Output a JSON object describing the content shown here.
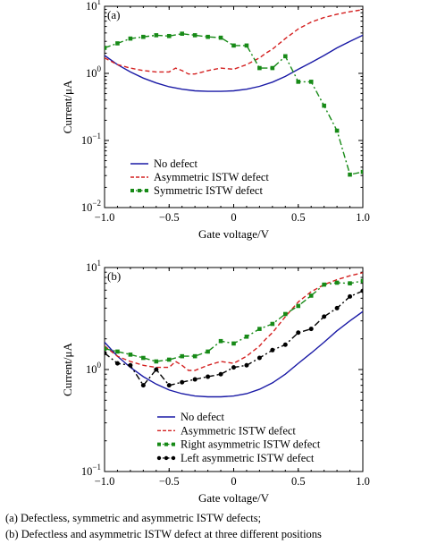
{
  "chart_data": [
    {
      "type": "line",
      "panel_label": "(a)",
      "xlabel": "Gate voltage/V",
      "ylabel": "Current/μA",
      "xlim": [
        -1.0,
        1.0
      ],
      "ylim": [
        0.01,
        10
      ],
      "y_scale": "log",
      "x_ticks": [
        "−1.0",
        "−0.5",
        "0",
        "0.5",
        "1.0"
      ],
      "x_tick_values": [
        -1.0,
        -0.5,
        0,
        0.5,
        1.0
      ],
      "y_ticks": [
        {
          "base": "10",
          "exp": "1"
        },
        {
          "base": "10",
          "exp": "0"
        },
        {
          "base": "10",
          "exp": "−1"
        },
        {
          "base": "10",
          "exp": "−2"
        }
      ],
      "y_tick_values": [
        10,
        1,
        0.1,
        0.01
      ],
      "grid": false,
      "legend_position": "bottom-left",
      "series": [
        {
          "name": "No defect",
          "color": "#1a1aa6",
          "style": "solid",
          "marker": "none",
          "x": [
            -1.0,
            -0.9,
            -0.8,
            -0.7,
            -0.6,
            -0.5,
            -0.4,
            -0.3,
            -0.2,
            -0.1,
            0.0,
            0.1,
            0.2,
            0.3,
            0.4,
            0.5,
            0.6,
            0.7,
            0.8,
            0.9,
            1.0
          ],
          "y": [
            1.85,
            1.35,
            1.05,
            0.85,
            0.72,
            0.63,
            0.58,
            0.55,
            0.54,
            0.54,
            0.55,
            0.58,
            0.64,
            0.74,
            0.9,
            1.15,
            1.45,
            1.85,
            2.4,
            3.0,
            3.7
          ]
        },
        {
          "name": "Asymmetric ISTW defect",
          "color": "#d42020",
          "style": "dashed",
          "marker": "none",
          "x": [
            -1.0,
            -0.9,
            -0.8,
            -0.7,
            -0.6,
            -0.5,
            -0.45,
            -0.4,
            -0.35,
            -0.3,
            -0.2,
            -0.1,
            0.0,
            0.1,
            0.2,
            0.25,
            0.3,
            0.4,
            0.5,
            0.6,
            0.7,
            0.8,
            0.9,
            1.0
          ],
          "y": [
            1.7,
            1.35,
            1.2,
            1.1,
            1.05,
            1.05,
            1.2,
            1.1,
            0.98,
            0.98,
            1.1,
            1.2,
            1.15,
            1.35,
            1.7,
            2.0,
            2.3,
            3.3,
            4.6,
            5.8,
            6.8,
            7.6,
            8.3,
            8.9
          ]
        },
        {
          "name": "Symmetric ISTW defect",
          "color": "#178a17",
          "style": "dashdot",
          "marker": "square",
          "x": [
            -1.0,
            -0.9,
            -0.8,
            -0.7,
            -0.6,
            -0.5,
            -0.4,
            -0.3,
            -0.2,
            -0.1,
            0.0,
            0.1,
            0.2,
            0.3,
            0.4,
            0.5,
            0.6,
            0.7,
            0.8,
            0.9,
            1.0
          ],
          "y": [
            2.4,
            2.8,
            3.3,
            3.5,
            3.7,
            3.6,
            3.9,
            3.7,
            3.5,
            3.4,
            2.6,
            2.6,
            1.2,
            1.2,
            1.8,
            0.75,
            0.75,
            0.33,
            0.14,
            0.031,
            0.034
          ]
        }
      ]
    },
    {
      "type": "line",
      "panel_label": "(b)",
      "xlabel": "Gate voltage/V",
      "ylabel": "Current/μA",
      "xlim": [
        -1.0,
        1.0
      ],
      "ylim": [
        0.1,
        10
      ],
      "y_scale": "log",
      "x_ticks": [
        "−1.0",
        "−0.5",
        "0",
        "0.5",
        "1.0"
      ],
      "x_tick_values": [
        -1.0,
        -0.5,
        0,
        0.5,
        1.0
      ],
      "y_ticks": [
        {
          "base": "10",
          "exp": "1"
        },
        {
          "base": "10",
          "exp": "0"
        },
        {
          "base": "10",
          "exp": "−1"
        }
      ],
      "y_tick_values": [
        10,
        1,
        0.1
      ],
      "grid": false,
      "legend_position": "bottom-left",
      "series": [
        {
          "name": "No defect",
          "color": "#1a1aa6",
          "style": "solid",
          "marker": "none",
          "x": [
            -1.0,
            -0.9,
            -0.8,
            -0.7,
            -0.6,
            -0.5,
            -0.4,
            -0.3,
            -0.2,
            -0.1,
            0.0,
            0.1,
            0.2,
            0.3,
            0.4,
            0.5,
            0.6,
            0.7,
            0.8,
            0.9,
            1.0
          ],
          "y": [
            1.85,
            1.35,
            1.05,
            0.85,
            0.72,
            0.63,
            0.58,
            0.55,
            0.54,
            0.54,
            0.55,
            0.58,
            0.64,
            0.74,
            0.9,
            1.15,
            1.45,
            1.85,
            2.4,
            3.0,
            3.7
          ]
        },
        {
          "name": "Asymmetric ISTW defect",
          "color": "#d42020",
          "style": "dashed",
          "marker": "none",
          "x": [
            -1.0,
            -0.9,
            -0.8,
            -0.7,
            -0.6,
            -0.5,
            -0.45,
            -0.4,
            -0.35,
            -0.3,
            -0.2,
            -0.1,
            0.0,
            0.1,
            0.2,
            0.25,
            0.3,
            0.4,
            0.5,
            0.6,
            0.7,
            0.8,
            0.9,
            1.0
          ],
          "y": [
            1.7,
            1.35,
            1.2,
            1.1,
            1.05,
            1.05,
            1.2,
            1.1,
            0.98,
            0.98,
            1.1,
            1.2,
            1.15,
            1.35,
            1.7,
            2.0,
            2.3,
            3.3,
            4.6,
            5.8,
            6.8,
            7.6,
            8.3,
            8.9
          ]
        },
        {
          "name": "Right asymmetric ISTW defect",
          "color": "#178a17",
          "style": "dashdot",
          "marker": "square",
          "x": [
            -1.0,
            -0.9,
            -0.8,
            -0.7,
            -0.6,
            -0.5,
            -0.4,
            -0.3,
            -0.2,
            -0.1,
            0.0,
            0.1,
            0.2,
            0.3,
            0.4,
            0.5,
            0.6,
            0.7,
            0.8,
            0.9,
            1.0
          ],
          "y": [
            1.6,
            1.5,
            1.4,
            1.3,
            1.2,
            1.25,
            1.35,
            1.35,
            1.5,
            1.9,
            1.8,
            2.1,
            2.5,
            2.8,
            3.5,
            4.2,
            5.3,
            6.8,
            7.1,
            7.0,
            7.4
          ]
        },
        {
          "name": "Left asymmetric ISTW defect",
          "color": "#000000",
          "style": "dashdot",
          "marker": "circle",
          "x": [
            -1.0,
            -0.9,
            -0.8,
            -0.7,
            -0.6,
            -0.5,
            -0.4,
            -0.3,
            -0.2,
            -0.1,
            0.0,
            0.1,
            0.2,
            0.3,
            0.4,
            0.5,
            0.6,
            0.7,
            0.8,
            0.9,
            1.0
          ],
          "y": [
            1.45,
            1.15,
            1.1,
            0.7,
            1.0,
            0.7,
            0.75,
            0.8,
            0.85,
            0.9,
            1.05,
            1.1,
            1.3,
            1.55,
            1.75,
            2.3,
            2.5,
            3.3,
            4.0,
            5.2,
            5.9
          ]
        }
      ]
    }
  ],
  "caption": {
    "line_a": "(a)   Defectless,   symmetric   and asymmetric   ISTW   defects;",
    "line_b": "(b)   Defectless   and asymmetric ISTW defect at three different positions"
  }
}
